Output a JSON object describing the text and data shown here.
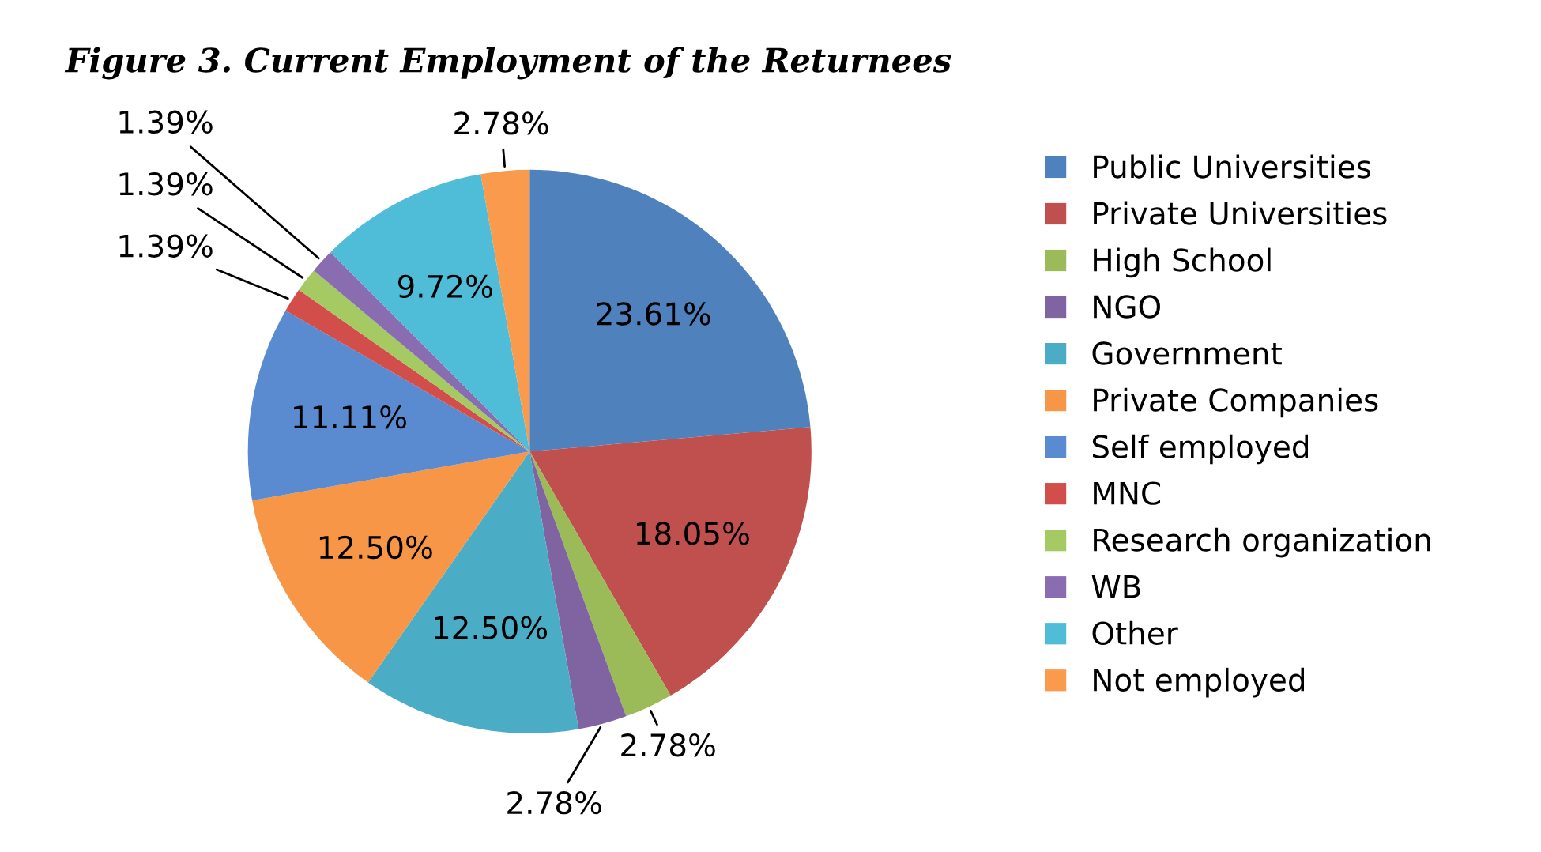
{
  "chart_data": {
    "type": "pie",
    "title": "Figure 3. Current Employment of the Returnees",
    "categories": [
      "Public Universities",
      "Private Universities",
      "High School",
      "NGO",
      "Government",
      "Private Companies",
      "Self employed",
      "MNC",
      "Research organization",
      "WB",
      "Other",
      "Not employed"
    ],
    "values": [
      23.61,
      18.05,
      2.78,
      2.78,
      12.5,
      12.5,
      11.11,
      1.39,
      1.39,
      1.39,
      9.72,
      2.78
    ],
    "value_labels": [
      "23.61%",
      "18.05%",
      "2.78%",
      "2.78%",
      "12.50%",
      "12.50%",
      "11.11%",
      "1.39%",
      "1.39%",
      "1.39%",
      "9.72%",
      "2.78%"
    ],
    "colors": [
      "#4f81bd",
      "#c0504d",
      "#9bbb59",
      "#8064a2",
      "#4bacc6",
      "#f79646",
      "#5a8bd0",
      "#d24e4b",
      "#a5c963",
      "#8a6db0",
      "#4fbcd8",
      "#f99a4c"
    ],
    "legend": "right"
  }
}
